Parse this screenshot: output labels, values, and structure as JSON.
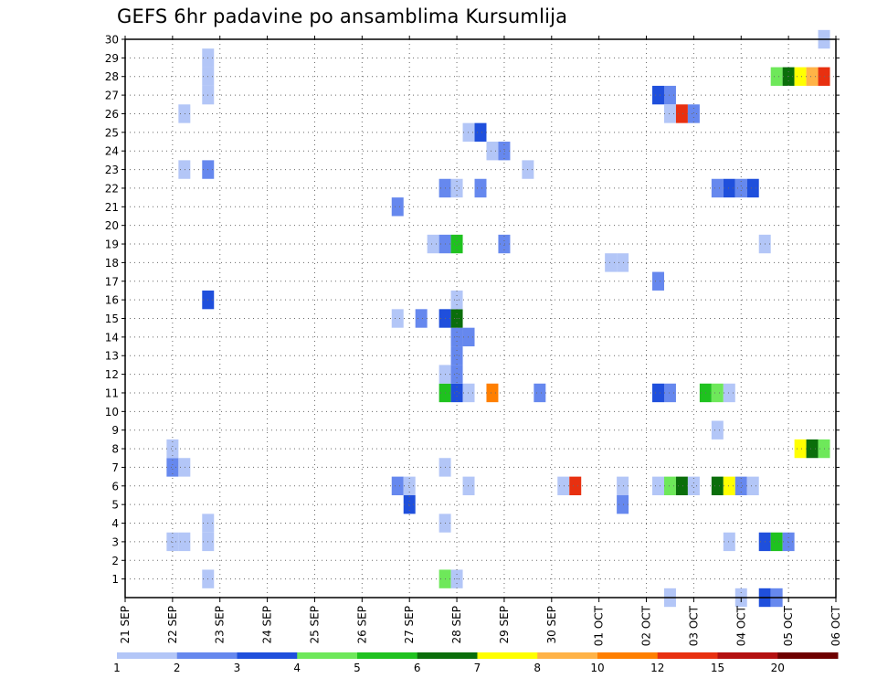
{
  "chart_data": {
    "type": "heatmap",
    "title": "GEFS 6hr padavine po ansamblima Kursumlija",
    "x_tick_labels": [
      "21 SEP",
      "22 SEP",
      "23 SEP",
      "24 SEP",
      "25 SEP",
      "26 SEP",
      "27 SEP",
      "28 SEP",
      "29 SEP",
      "30 SEP",
      "01 OCT",
      "02 OCT",
      "03 OCT",
      "04 OCT",
      "05 OCT",
      "06 OCT"
    ],
    "y_tick_labels": [
      "1",
      "2",
      "3",
      "4",
      "5",
      "6",
      "7",
      "8",
      "9",
      "10",
      "11",
      "12",
      "13",
      "14",
      "15",
      "16",
      "17",
      "18",
      "19",
      "20",
      "21",
      "22",
      "23",
      "24",
      "25",
      "26",
      "27",
      "28",
      "29",
      "30"
    ],
    "x_range_days": [
      0,
      15
    ],
    "y_range": [
      0,
      30
    ],
    "grid": true,
    "legend": {
      "placement": "bottom",
      "thresholds": [
        "1",
        "2",
        "3",
        "4",
        "5",
        "6",
        "7",
        "8",
        "10",
        "12",
        "15",
        "20"
      ],
      "colors": [
        "#b3c6f7",
        "#6688ee",
        "#1f4fdc",
        "#6ee85a",
        "#1fc21f",
        "#0a6e0a",
        "#ffff00",
        "#ffb347",
        "#ff7f00",
        "#e83010",
        "#b41010",
        "#6e0000"
      ]
    },
    "cells": [
      {
        "t": 1.0,
        "m": 3,
        "c": 0
      },
      {
        "t": 1.25,
        "m": 3,
        "c": 0
      },
      {
        "t": 1.0,
        "m": 7,
        "c": 1
      },
      {
        "t": 1.25,
        "m": 7,
        "c": 0
      },
      {
        "t": 1.0,
        "m": 8,
        "c": 0
      },
      {
        "t": 1.25,
        "m": 23,
        "c": 0
      },
      {
        "t": 1.25,
        "m": 26,
        "c": 0
      },
      {
        "t": 1.75,
        "m": 1,
        "c": 0
      },
      {
        "t": 1.75,
        "m": 3,
        "c": 0
      },
      {
        "t": 1.75,
        "m": 4,
        "c": 0
      },
      {
        "t": 1.75,
        "m": 16,
        "c": 2
      },
      {
        "t": 1.75,
        "m": 23,
        "c": 1
      },
      {
        "t": 1.75,
        "m": 27,
        "c": 0
      },
      {
        "t": 1.75,
        "m": 28,
        "c": 0
      },
      {
        "t": 1.75,
        "m": 29,
        "c": 0
      },
      {
        "t": 5.75,
        "m": 6,
        "c": 1
      },
      {
        "t": 6.0,
        "m": 6,
        "c": 0
      },
      {
        "t": 6.0,
        "m": 5,
        "c": 2
      },
      {
        "t": 5.75,
        "m": 15,
        "c": 0
      },
      {
        "t": 6.25,
        "m": 15,
        "c": 1
      },
      {
        "t": 5.75,
        "m": 21,
        "c": 1
      },
      {
        "t": 6.5,
        "m": 19,
        "c": 0
      },
      {
        "t": 6.75,
        "m": 1,
        "c": 3
      },
      {
        "t": 7.0,
        "m": 1,
        "c": 0
      },
      {
        "t": 6.75,
        "m": 4,
        "c": 0
      },
      {
        "t": 6.75,
        "m": 7,
        "c": 0
      },
      {
        "t": 6.75,
        "m": 11,
        "c": 4
      },
      {
        "t": 7.0,
        "m": 11,
        "c": 2
      },
      {
        "t": 7.25,
        "m": 11,
        "c": 0
      },
      {
        "t": 6.75,
        "m": 12,
        "c": 0
      },
      {
        "t": 7.0,
        "m": 12,
        "c": 1
      },
      {
        "t": 7.0,
        "m": 13,
        "c": 1
      },
      {
        "t": 7.0,
        "m": 14,
        "c": 1
      },
      {
        "t": 7.25,
        "m": 14,
        "c": 1
      },
      {
        "t": 6.75,
        "m": 15,
        "c": 2
      },
      {
        "t": 7.0,
        "m": 15,
        "c": 5
      },
      {
        "t": 7.0,
        "m": 16,
        "c": 0
      },
      {
        "t": 6.75,
        "m": 19,
        "c": 1
      },
      {
        "t": 7.0,
        "m": 19,
        "c": 4
      },
      {
        "t": 6.75,
        "m": 22,
        "c": 1
      },
      {
        "t": 7.0,
        "m": 22,
        "c": 0
      },
      {
        "t": 7.25,
        "m": 6,
        "c": 0
      },
      {
        "t": 7.25,
        "m": 25,
        "c": 0
      },
      {
        "t": 7.5,
        "m": 25,
        "c": 2
      },
      {
        "t": 7.5,
        "m": 22,
        "c": 1
      },
      {
        "t": 7.75,
        "m": 24,
        "c": 0
      },
      {
        "t": 8.0,
        "m": 24,
        "c": 1
      },
      {
        "t": 7.75,
        "m": 11,
        "c": 8
      },
      {
        "t": 8.0,
        "m": 19,
        "c": 1
      },
      {
        "t": 8.5,
        "m": 23,
        "c": 0
      },
      {
        "t": 8.75,
        "m": 11,
        "c": 1
      },
      {
        "t": 9.25,
        "m": 6,
        "c": 0
      },
      {
        "t": 9.5,
        "m": 6,
        "c": 9
      },
      {
        "t": 10.25,
        "m": 18,
        "c": 0
      },
      {
        "t": 10.5,
        "m": 18,
        "c": 0
      },
      {
        "t": 10.5,
        "m": 6,
        "c": 0
      },
      {
        "t": 10.5,
        "m": 5,
        "c": 1
      },
      {
        "t": 11.25,
        "m": 6,
        "c": 0
      },
      {
        "t": 11.5,
        "m": 6,
        "c": 3
      },
      {
        "t": 11.75,
        "m": 6,
        "c": 5
      },
      {
        "t": 12.0,
        "m": 6,
        "c": 0
      },
      {
        "t": 11.25,
        "m": 11,
        "c": 2
      },
      {
        "t": 11.5,
        "m": 11,
        "c": 1
      },
      {
        "t": 11.25,
        "m": 17,
        "c": 1
      },
      {
        "t": 11.25,
        "m": 27,
        "c": 2
      },
      {
        "t": 11.5,
        "m": 27,
        "c": 1
      },
      {
        "t": 11.5,
        "m": 26,
        "c": 0
      },
      {
        "t": 11.75,
        "m": 26,
        "c": 9
      },
      {
        "t": 12.0,
        "m": 26,
        "c": 1
      },
      {
        "t": 11.5,
        "m": 0,
        "c": 0
      },
      {
        "t": 12.25,
        "m": 11,
        "c": 4
      },
      {
        "t": 12.5,
        "m": 11,
        "c": 3
      },
      {
        "t": 12.75,
        "m": 11,
        "c": 0
      },
      {
        "t": 12.5,
        "m": 6,
        "c": 5
      },
      {
        "t": 12.75,
        "m": 6,
        "c": 6
      },
      {
        "t": 13.0,
        "m": 6,
        "c": 1
      },
      {
        "t": 13.25,
        "m": 6,
        "c": 0
      },
      {
        "t": 12.5,
        "m": 9,
        "c": 0
      },
      {
        "t": 12.75,
        "m": 3,
        "c": 0
      },
      {
        "t": 12.5,
        "m": 22,
        "c": 1
      },
      {
        "t": 12.75,
        "m": 22,
        "c": 2
      },
      {
        "t": 13.0,
        "m": 22,
        "c": 1
      },
      {
        "t": 13.25,
        "m": 22,
        "c": 2
      },
      {
        "t": 13.0,
        "m": 0,
        "c": 0
      },
      {
        "t": 13.5,
        "m": 3,
        "c": 2
      },
      {
        "t": 13.75,
        "m": 3,
        "c": 4
      },
      {
        "t": 14.0,
        "m": 3,
        "c": 1
      },
      {
        "t": 13.5,
        "m": 0,
        "c": 2
      },
      {
        "t": 13.75,
        "m": 0,
        "c": 1
      },
      {
        "t": 13.5,
        "m": 19,
        "c": 0
      },
      {
        "t": 13.75,
        "m": 28,
        "c": 3
      },
      {
        "t": 14.0,
        "m": 28,
        "c": 5
      },
      {
        "t": 14.25,
        "m": 28,
        "c": 6
      },
      {
        "t": 14.5,
        "m": 28,
        "c": 7
      },
      {
        "t": 14.75,
        "m": 28,
        "c": 9
      },
      {
        "t": 14.25,
        "m": 8,
        "c": 6
      },
      {
        "t": 14.5,
        "m": 8,
        "c": 5
      },
      {
        "t": 14.75,
        "m": 8,
        "c": 3
      },
      {
        "t": 14.75,
        "m": 30,
        "c": 0
      }
    ]
  }
}
